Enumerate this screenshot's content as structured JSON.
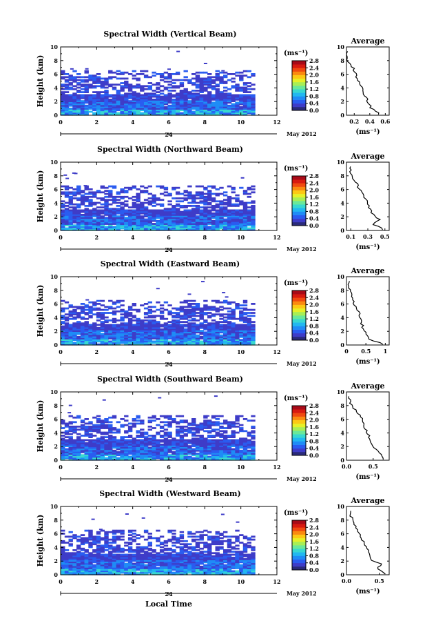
{
  "page": {
    "xlabel": "Local Time",
    "day_label": "24",
    "month_label": "May 2012",
    "colorbar_unit": "(ms⁻¹)",
    "avg_title": "Average",
    "avg_unit": "(ms⁻¹)",
    "ylabel": "Height (km)"
  },
  "colors": {
    "colormap": [
      "#2a2a7a",
      "#3e3cc8",
      "#2a5cf0",
      "#1f8cf6",
      "#22b8f0",
      "#38d8d0",
      "#6ae89a",
      "#a8ee56",
      "#e6f028",
      "#fcc814",
      "#fa8a10",
      "#f04a10",
      "#d81a10",
      "#a80a18"
    ]
  },
  "chart_data": [
    {
      "type": "heatmap",
      "title": "Spectral Width (Vertical Beam)",
      "xlim": [
        0,
        12
      ],
      "ylim": [
        0,
        10
      ],
      "xticks": [
        0,
        2,
        4,
        6,
        8,
        10,
        12
      ],
      "yticks": [
        0,
        2,
        4,
        6,
        8,
        10
      ],
      "colorbar_ticks": [
        "0.0",
        "0.4",
        "0.8",
        "1.2",
        "1.6",
        "2.0",
        "2.4",
        "2.8"
      ],
      "average": {
        "xticks": [
          0.2,
          0.4,
          0.6
        ],
        "xlim": [
          0.1,
          0.65
        ],
        "xticklabels": [
          "0.2",
          "0.4",
          "0.6"
        ],
        "heights": [
          0.2,
          1,
          2,
          3,
          4,
          5,
          6,
          7,
          7.5,
          8,
          8.5
        ],
        "values": [
          0.52,
          0.42,
          0.38,
          0.32,
          0.3,
          0.25,
          0.22,
          0.18,
          0.15,
          0.12,
          0.1
        ]
      }
    },
    {
      "type": "heatmap",
      "title": "Spectral Width (Northward Beam)",
      "xlim": [
        0,
        12
      ],
      "ylim": [
        0,
        10
      ],
      "xticks": [
        0,
        2,
        4,
        6,
        8,
        10,
        12
      ],
      "yticks": [
        0,
        2,
        4,
        6,
        8,
        10
      ],
      "colorbar_ticks": [
        "0.0",
        "0.4",
        "0.8",
        "1.2",
        "1.6",
        "2.0",
        "2.4",
        "2.8"
      ],
      "average": {
        "xticks": [
          0.1,
          0.3,
          0.5
        ],
        "xlim": [
          0.05,
          0.55
        ],
        "xticklabels": [
          "0.1",
          "0.3",
          "0.5"
        ],
        "heights": [
          0.2,
          1,
          1.5,
          2,
          3,
          4,
          5,
          6,
          7,
          7.5,
          8
        ],
        "values": [
          0.48,
          0.35,
          0.45,
          0.38,
          0.33,
          0.3,
          0.25,
          0.2,
          0.17,
          0.12,
          0.1
        ]
      }
    },
    {
      "type": "heatmap",
      "title": "Spectral Width (Eastward Beam)",
      "xlim": [
        0,
        12
      ],
      "ylim": [
        0,
        10
      ],
      "xticks": [
        0,
        2,
        4,
        6,
        8,
        10,
        12
      ],
      "yticks": [
        0,
        2,
        4,
        6,
        8,
        10
      ],
      "colorbar_ticks": [
        "0.0",
        "0.4",
        "0.8",
        "1.2",
        "1.6",
        "2.0",
        "2.4",
        "2.8"
      ],
      "average": {
        "xticks": [
          0,
          0.5,
          1
        ],
        "xlim": [
          0,
          1.1
        ],
        "xticklabels": [
          "0",
          "0.5",
          "1"
        ],
        "heights": [
          0.2,
          0.8,
          1.5,
          2,
          3,
          4,
          5,
          6,
          7,
          8,
          9
        ],
        "values": [
          0.95,
          0.6,
          0.55,
          0.45,
          0.4,
          0.35,
          0.3,
          0.2,
          0.15,
          0.08,
          0.05
        ]
      }
    },
    {
      "type": "heatmap",
      "title": "Spectral Width (Southward Beam)",
      "xlim": [
        0,
        12
      ],
      "ylim": [
        0,
        10
      ],
      "xticks": [
        0,
        2,
        4,
        6,
        8,
        10,
        12
      ],
      "yticks": [
        0,
        2,
        4,
        6,
        8,
        10
      ],
      "colorbar_ticks": [
        "0.0",
        "0.4",
        "0.8",
        "1.2",
        "1.6",
        "2.0",
        "2.4",
        "2.8"
      ],
      "average": {
        "xticks": [
          0,
          0.5
        ],
        "xlim": [
          0,
          0.8
        ],
        "xticklabels": [
          "0.0",
          "0.5"
        ],
        "heights": [
          0.2,
          1,
          2,
          3,
          4,
          5,
          6,
          7,
          8,
          9
        ],
        "values": [
          0.7,
          0.65,
          0.5,
          0.45,
          0.4,
          0.32,
          0.3,
          0.2,
          0.1,
          0.05
        ]
      }
    },
    {
      "type": "heatmap",
      "title": "Spectral Width (Westward Beam)",
      "xlim": [
        0,
        12
      ],
      "ylim": [
        0,
        10
      ],
      "xticks": [
        0,
        2,
        4,
        6,
        8,
        10,
        12
      ],
      "yticks": [
        0,
        2,
        4,
        6,
        8,
        10
      ],
      "colorbar_ticks": [
        "0.0",
        "0.4",
        "0.8",
        "1.2",
        "1.6",
        "2.0",
        "2.4",
        "2.8"
      ],
      "average": {
        "xticks": [
          0,
          0.5
        ],
        "xlim": [
          0,
          0.65
        ],
        "xticklabels": [
          "0.0",
          "0.5"
        ],
        "heights": [
          0.2,
          1,
          1.5,
          2,
          3,
          4,
          5,
          6,
          7,
          8,
          9
        ],
        "values": [
          0.6,
          0.45,
          0.55,
          0.4,
          0.35,
          0.3,
          0.25,
          0.2,
          0.15,
          0.1,
          0.05
        ]
      }
    }
  ]
}
